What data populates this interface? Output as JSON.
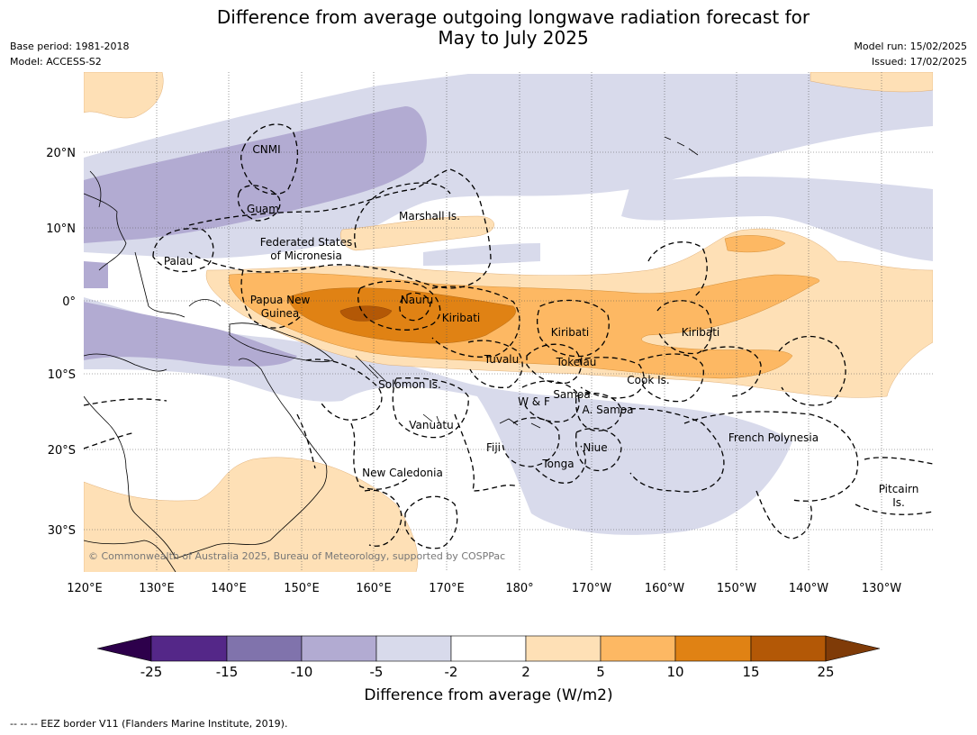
{
  "title_line1": "Difference from average outgoing longwave radiation forecast for",
  "title_line2": "May to July 2025",
  "meta_left": {
    "base_period": "Base period: 1981-2018",
    "model": "Model: ACCESS-S2"
  },
  "meta_right": {
    "model_run": "Model run: 15/02/2025",
    "issued": "Issued: 17/02/2025"
  },
  "lat_labels": [
    "20°N",
    "10°N",
    "0°",
    "10°S",
    "20°S",
    "30°S"
  ],
  "lon_labels": [
    "120°E",
    "130°E",
    "140°E",
    "150°E",
    "160°E",
    "170°E",
    "180°",
    "170°W",
    "160°W",
    "150°W",
    "140°W",
    "130°W"
  ],
  "places": {
    "cnmi": "CNMI",
    "guam": "Guam",
    "marshall": "Marshall Is.",
    "fsm_1": "Federated States",
    "fsm_2": "of Micronesia",
    "palau": "Palau",
    "png_1": "Papua New",
    "png_2": "Guinea",
    "nauru": "Nauru",
    "kiribati_w": "Kiribati",
    "kiribati_c": "Kiribati",
    "kiribati_e": "Kiribati",
    "tuvalu": "Tuvalu",
    "tokelau": "Tokelau",
    "cook": "Cook Is.",
    "solomon": "Solomon Is.",
    "samoa": "Samoa",
    "wf": "W & F",
    "asamoa": "A. Samoa",
    "vanuatu": "Vanuatu",
    "fiji": "Fiji",
    "niue": "Niue",
    "tonga": "Tonga",
    "new_caledonia": "New Caledonia",
    "french_polynesia": "French Polynesia",
    "pitcairn_1": "Pitcairn",
    "pitcairn_2": "Is."
  },
  "copyright": "© Commonwealth of Australia 2025, Bureau of Meteorology, supported by COSPPac",
  "colorbar": {
    "title": "Difference from average (W/m2)",
    "ticks": [
      "-25",
      "-15",
      "-10",
      "-5",
      "-2",
      "2",
      "5",
      "10",
      "15",
      "25"
    ],
    "colors": [
      "#2d004b",
      "#542788",
      "#8073ac",
      "#b2abd2",
      "#d8daeb",
      "#ffffff",
      "#fee0b6",
      "#fdb863",
      "#e08214",
      "#b35806",
      "#7f3b08"
    ]
  },
  "footer": "--  --  -- EEZ border V11 (Flanders Marine Institute, 2019)."
}
